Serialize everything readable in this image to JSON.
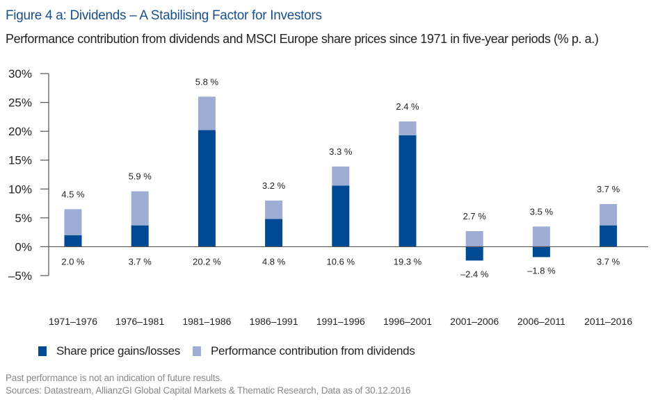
{
  "colors": {
    "share_price": "#004a93",
    "dividends": "#9eadd4",
    "title": "#1a4f8b",
    "axis": "#555555"
  },
  "chart_data": {
    "type": "bar",
    "stacked": true,
    "title": "Figure 4 a: Dividends – A Stabilising Factor for Investors",
    "subtitle": "Performance contribution from dividends and MSCI Europe share prices since 1971 in five-year periods (% p. a.)",
    "xlabel": "",
    "ylabel": "",
    "ylim": [
      -5,
      30
    ],
    "yticks": [
      30,
      25,
      20,
      15,
      10,
      5,
      0,
      -5
    ],
    "ytick_labels": [
      "30%",
      "25%",
      "20%",
      "15%",
      "10%",
      "5%",
      "0%",
      "–5%"
    ],
    "grid": false,
    "legend_position": "bottom-left",
    "categories": [
      "1971–1976",
      "1976–1981",
      "1981–1986",
      "1986–1991",
      "1991–1996",
      "1996–2001",
      "2001–2006",
      "2006–2011",
      "2011–2016"
    ],
    "series": [
      {
        "name": "Share price gains/losses",
        "values": [
          2.0,
          3.7,
          20.2,
          4.8,
          10.6,
          19.3,
          -2.4,
          -1.8,
          3.7
        ],
        "labels": [
          "2.0 %",
          "3.7 %",
          "20.2 %",
          "4.8 %",
          "10.6 %",
          "19.3 %",
          "–2.4 %",
          "–1.8 %",
          "3.7 %"
        ]
      },
      {
        "name": "Performance contribution from dividends",
        "values": [
          4.5,
          5.9,
          5.8,
          3.2,
          3.3,
          2.4,
          2.7,
          3.5,
          3.7
        ],
        "labels": [
          "4.5 %",
          "5.9 %",
          "5.8 %",
          "3.2 %",
          "3.3 %",
          "2.4 %",
          "2.7 %",
          "3.5 %",
          "3.7 %"
        ]
      }
    ]
  },
  "legend": {
    "share_price": "Share price gains/losses",
    "dividends": "Performance contribution from dividends"
  },
  "footnotes": {
    "disclaimer": "Past performance is not an indication of future results.",
    "sources": "Sources: Datastream, AllianzGI Global Capital Markets & Thematic Research, Data as of 30.12.2016"
  }
}
